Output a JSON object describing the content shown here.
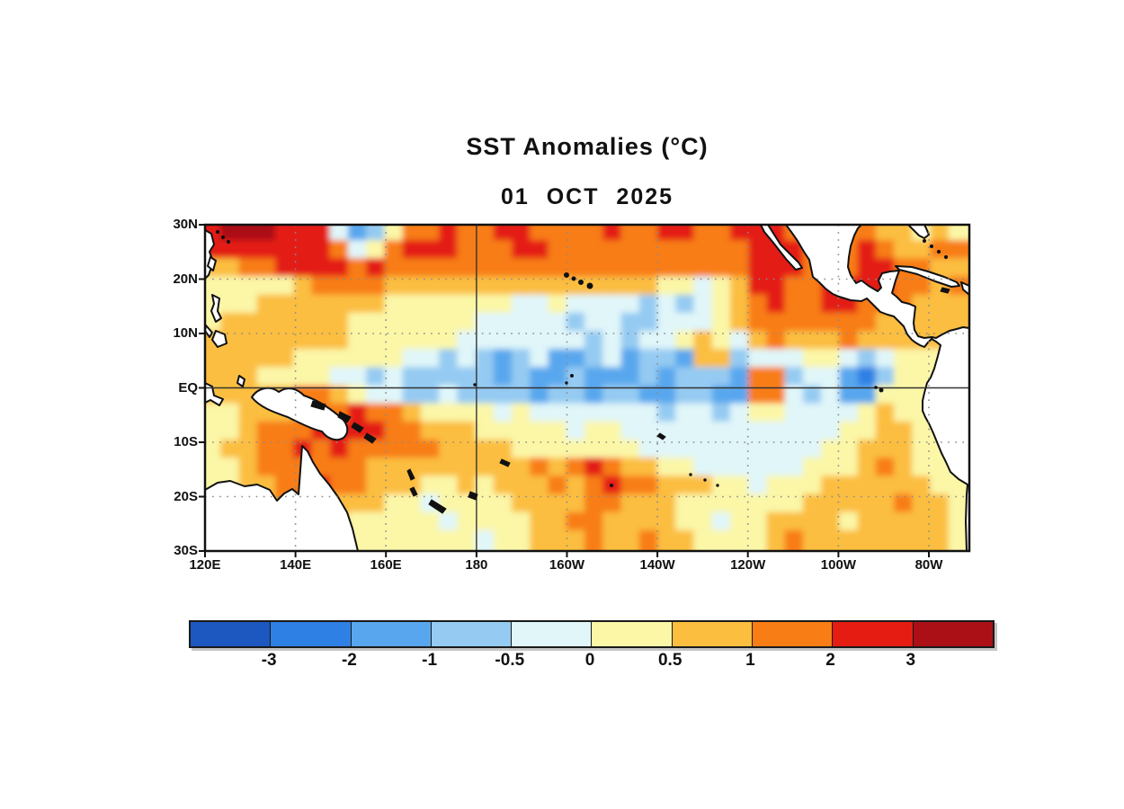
{
  "title": "SST Anomalies (°C)",
  "date": "01 OCT 2025",
  "chart_data": {
    "type": "heatmap",
    "title": "SST Anomalies (°C)",
    "subtitle": "01 OCT 2025",
    "units": "°C",
    "x_tick_labels": [
      "120E",
      "140E",
      "160E",
      "180",
      "160W",
      "140W",
      "120W",
      "100W",
      "80W"
    ],
    "y_tick_labels": [
      "30N",
      "20N",
      "10N",
      "EQ",
      "10S",
      "20S",
      "30S"
    ],
    "lon_range_deg_east": [
      120,
      289
    ],
    "lat_range_deg_north": [
      30,
      -30
    ],
    "grid_on": true,
    "colorbar": {
      "levels": [
        -3,
        -2,
        -1,
        -0.5,
        0,
        0.5,
        1,
        2,
        3
      ],
      "labels": [
        "-3",
        "-2",
        "-1",
        "-0.5",
        "0",
        "0.5",
        "1",
        "2",
        "3"
      ],
      "colors": [
        "#1D57C0",
        "#2F80E4",
        "#58A7EE",
        "#95CBF2",
        "#E0F6F9",
        "#FBF7A7",
        "#FBBE3F",
        "#F87D15",
        "#E41C12",
        "#AB1016"
      ]
    },
    "grid": {
      "ncols": 42,
      "nrows": 18,
      "comment_values": "estimated SST anomaly (degC) per ~4deg x 3.3deg cell, row 0 = 30N..26.7N, col 0 = 120E",
      "values": [
        [
          2.5,
          3.5,
          3.5,
          3.5,
          2.5,
          2.5,
          2.5,
          -0.25,
          -1.5,
          -0.75,
          0.25,
          1.5,
          1.5,
          2.5,
          1.5,
          1.5,
          2.5,
          2.5,
          1.5,
          1.5,
          1.5,
          1.5,
          2.5,
          1.5,
          1.5,
          2.5,
          2.5,
          1.5,
          1.5,
          2.5,
          2.5,
          2.5,
          1.5,
          1.5,
          1.5,
          1.5,
          1.5,
          0.75,
          0.75,
          0.25,
          0.75,
          0.25
        ],
        [
          2.5,
          2.5,
          2.5,
          2.5,
          2.5,
          2.5,
          2.5,
          1.5,
          -0.25,
          0.25,
          1.5,
          2.5,
          2.5,
          2.5,
          1.5,
          1.5,
          1.5,
          2.5,
          2.5,
          1.5,
          1.5,
          1.5,
          1.5,
          1.5,
          1.5,
          1.5,
          1.5,
          1.5,
          1.5,
          1.5,
          2.5,
          2.5,
          2.5,
          1.5,
          1.5,
          1.5,
          2.5,
          1.5,
          0.75,
          0.75,
          1.5,
          1.5
        ],
        [
          0.75,
          0.75,
          1.5,
          1.5,
          2.5,
          2.5,
          2.5,
          2.5,
          1.5,
          2.5,
          1.5,
          1.5,
          1.5,
          1.5,
          1.5,
          1.5,
          1.5,
          1.5,
          1.5,
          1.5,
          1.5,
          1.5,
          1.5,
          1.5,
          1.5,
          1.5,
          1.5,
          1.5,
          1.5,
          1.5,
          2.5,
          2.5,
          2.5,
          1.5,
          0.75,
          1.5,
          2.5,
          2.5,
          1.5,
          1.5,
          0.75,
          0.75
        ],
        [
          0.25,
          0.25,
          0.25,
          0.25,
          0.25,
          0.75,
          1.5,
          1.5,
          1.5,
          1.5,
          0.75,
          0.75,
          0.75,
          0.75,
          0.75,
          0.75,
          0.75,
          0.75,
          0.75,
          0.75,
          0.75,
          0.75,
          0.75,
          0.75,
          0.75,
          0.25,
          0.25,
          -0.25,
          0.25,
          0.75,
          2.5,
          2.5,
          1.5,
          1.5,
          2.5,
          2.5,
          2.5,
          2.5,
          1.5,
          1.5,
          0.75,
          1.5
        ],
        [
          0.25,
          0.25,
          0.25,
          0.75,
          0.75,
          0.75,
          0.75,
          0.75,
          0.75,
          0.75,
          0.25,
          0.25,
          0.25,
          0.25,
          0.25,
          0.25,
          0.25,
          -0.25,
          -0.25,
          0.25,
          -0.25,
          -0.25,
          -0.25,
          -0.25,
          -0.75,
          -0.25,
          -0.75,
          -0.25,
          0.25,
          0.75,
          1.5,
          2.5,
          1.5,
          1.5,
          2.5,
          2.5,
          1.5,
          1.5,
          1.5,
          0.75,
          0.75,
          0.75
        ],
        [
          0.25,
          0.75,
          0.75,
          0.75,
          0.75,
          0.75,
          0.75,
          0.75,
          0.25,
          0.25,
          0.25,
          0.25,
          0.25,
          0.25,
          0.25,
          -0.25,
          -0.25,
          -0.25,
          -0.25,
          -0.25,
          -0.75,
          -0.25,
          -0.25,
          -0.75,
          -0.75,
          -0.25,
          -0.25,
          -0.25,
          0.25,
          0.75,
          1.5,
          1.5,
          1.5,
          1.5,
          1.5,
          1.5,
          1.5,
          0.75,
          0.75,
          0.75,
          0.75,
          0.75
        ],
        [
          0.75,
          0.75,
          0.75,
          0.75,
          0.75,
          0.75,
          0.75,
          0.75,
          0.25,
          0.25,
          0.25,
          0.25,
          0.25,
          0.25,
          -0.25,
          -0.25,
          -0.25,
          -0.25,
          -0.25,
          -0.25,
          -0.25,
          -0.75,
          -0.25,
          -0.75,
          -0.25,
          -0.25,
          0.25,
          0.75,
          0.25,
          -0.25,
          0.75,
          1.5,
          0.75,
          0.75,
          0.75,
          1.5,
          0.75,
          0.75,
          0.75,
          0.75,
          0.75,
          0.75
        ],
        [
          0.75,
          0.75,
          0.75,
          0.75,
          0.75,
          0.25,
          0.25,
          0.25,
          0.25,
          0.25,
          0.25,
          -0.25,
          -0.25,
          -0.75,
          -0.25,
          -0.75,
          -1.5,
          -0.75,
          -0.25,
          -1.5,
          -1.5,
          -0.75,
          -0.25,
          -1.5,
          -0.75,
          -0.75,
          -1.5,
          0.75,
          0.75,
          -0.75,
          -0.25,
          -0.25,
          -0.25,
          0.25,
          0.25,
          -0.25,
          -0.75,
          -0.25,
          0.25,
          0.25,
          0.25,
          0.25
        ],
        [
          0.75,
          0.75,
          0.75,
          0.25,
          0.25,
          0.25,
          0.25,
          -0.25,
          -0.25,
          -0.75,
          -0.25,
          -0.75,
          -0.75,
          -0.75,
          -0.75,
          -0.75,
          -1.5,
          -0.75,
          -1.5,
          -1.5,
          -0.75,
          -1.5,
          -1.5,
          -1.5,
          -0.75,
          -1.5,
          -0.75,
          -0.75,
          -0.75,
          -1.5,
          1.5,
          1.5,
          -0.75,
          -0.25,
          -0.25,
          -1.5,
          -2.5,
          -0.75,
          0.25,
          0.25,
          0.25,
          0.25
        ],
        [
          0.75,
          0.75,
          0.75,
          0.75,
          0.75,
          1.5,
          1.5,
          0.75,
          0.25,
          -0.25,
          -0.25,
          -0.75,
          -0.75,
          -0.25,
          -0.75,
          -0.75,
          -0.75,
          -0.75,
          -1.5,
          -0.75,
          -0.75,
          -1.5,
          -0.75,
          -0.75,
          -1.5,
          -1.5,
          -0.75,
          -0.75,
          -1.5,
          -1.5,
          1.5,
          1.5,
          -0.25,
          -0.75,
          -0.25,
          -1.5,
          -1.5,
          0.25,
          0.25,
          0.25,
          0.25,
          0.25
        ],
        [
          0.25,
          0.25,
          0.75,
          0.75,
          0.75,
          1.5,
          1.5,
          1.5,
          2.5,
          1.5,
          1.5,
          0.75,
          0.25,
          0.25,
          0.25,
          0.25,
          -0.25,
          0.25,
          -0.25,
          -0.25,
          -0.25,
          -0.25,
          -0.25,
          -0.25,
          -0.25,
          -0.75,
          -0.25,
          -0.25,
          -0.75,
          -0.25,
          0.25,
          0.25,
          -0.25,
          -0.25,
          -0.25,
          -0.25,
          0.25,
          0.75,
          0.25,
          0.25,
          0.25,
          0.25
        ],
        [
          0.25,
          0.25,
          0.75,
          1.5,
          1.5,
          1.5,
          2.5,
          2.5,
          2.5,
          2.5,
          1.5,
          1.5,
          0.75,
          0.75,
          0.75,
          0.25,
          0.25,
          0.25,
          0.25,
          0.25,
          -0.25,
          0.25,
          0.25,
          -0.25,
          -0.25,
          -0.25,
          -0.25,
          -0.25,
          -0.25,
          -0.25,
          -0.25,
          -0.25,
          -0.25,
          -0.25,
          -0.25,
          0.25,
          0.25,
          0.75,
          0.75,
          0.25,
          0.25,
          0.25
        ],
        [
          0.25,
          0.75,
          0.75,
          1.5,
          1.5,
          2.5,
          1.5,
          2.5,
          1.5,
          1.5,
          1.5,
          1.5,
          1.5,
          0.75,
          0.75,
          0.75,
          0.75,
          0.25,
          0.25,
          0.25,
          0.25,
          0.25,
          0.25,
          0.25,
          -0.25,
          -0.25,
          -0.25,
          -0.25,
          -0.25,
          -0.25,
          -0.25,
          -0.25,
          -0.25,
          -0.25,
          0.25,
          0.25,
          0.75,
          0.75,
          0.75,
          0.25,
          0.25,
          0.25
        ],
        [
          0.25,
          0.25,
          0.75,
          1.5,
          1.5,
          1.5,
          1.5,
          1.5,
          1.5,
          0.75,
          0.75,
          0.75,
          0.75,
          0.75,
          0.75,
          0.75,
          0.75,
          0.75,
          1.5,
          0.75,
          1.5,
          2.5,
          1.5,
          0.75,
          0.75,
          0.25,
          0.25,
          -0.25,
          -0.25,
          -0.25,
          -0.25,
          -0.25,
          -0.25,
          0.25,
          0.25,
          0.25,
          0.75,
          1.5,
          0.75,
          0.25,
          0.25,
          0.25
        ],
        [
          0.25,
          0.25,
          0.75,
          0.75,
          1.5,
          1.5,
          2.5,
          1.5,
          1.5,
          0.75,
          0.75,
          0.75,
          0.25,
          0.25,
          0.75,
          0.25,
          0.75,
          0.75,
          0.75,
          1.5,
          0.75,
          1.5,
          2.5,
          1.5,
          1.5,
          0.75,
          0.75,
          0.75,
          0.25,
          0.25,
          -0.25,
          0.25,
          0.25,
          0.25,
          0.75,
          0.75,
          0.75,
          0.75,
          0.75,
          0.75,
          0.25,
          0.25
        ],
        [
          0.25,
          0.25,
          0.25,
          0.75,
          1.5,
          2.5,
          1.5,
          0.75,
          0.75,
          0.75,
          0.25,
          0.25,
          -0.25,
          0.25,
          0.25,
          0.25,
          0.25,
          0.75,
          0.75,
          0.75,
          0.75,
          1.5,
          1.5,
          0.75,
          0.75,
          0.75,
          0.25,
          0.25,
          0.25,
          0.25,
          0.25,
          0.25,
          0.25,
          0.75,
          0.75,
          0.75,
          0.75,
          0.75,
          1.5,
          0.75,
          0.75,
          0.25
        ],
        [
          0.25,
          0.25,
          0.25,
          0.75,
          1.5,
          1.5,
          0.75,
          0.75,
          0.25,
          0.25,
          0.25,
          0.25,
          0.25,
          -0.25,
          0.25,
          0.25,
          0.25,
          0.25,
          0.75,
          0.75,
          1.5,
          1.5,
          0.75,
          0.75,
          0.75,
          0.75,
          0.25,
          0.25,
          -0.25,
          0.25,
          0.25,
          0.75,
          0.75,
          0.75,
          0.75,
          0.25,
          0.75,
          0.75,
          0.75,
          0.75,
          0.75,
          0.25
        ],
        [
          0.25,
          0.25,
          0.25,
          0.75,
          0.75,
          1.5,
          0.75,
          0.25,
          0.25,
          0.25,
          0.25,
          0.25,
          0.25,
          0.25,
          0.25,
          -0.25,
          0.25,
          0.25,
          0.75,
          0.75,
          0.75,
          1.5,
          0.75,
          0.75,
          1.5,
          0.75,
          0.75,
          0.25,
          0.25,
          0.25,
          0.25,
          0.75,
          1.5,
          0.75,
          0.75,
          0.75,
          0.75,
          0.75,
          0.75,
          0.75,
          0.75,
          0.25
        ]
      ]
    }
  }
}
